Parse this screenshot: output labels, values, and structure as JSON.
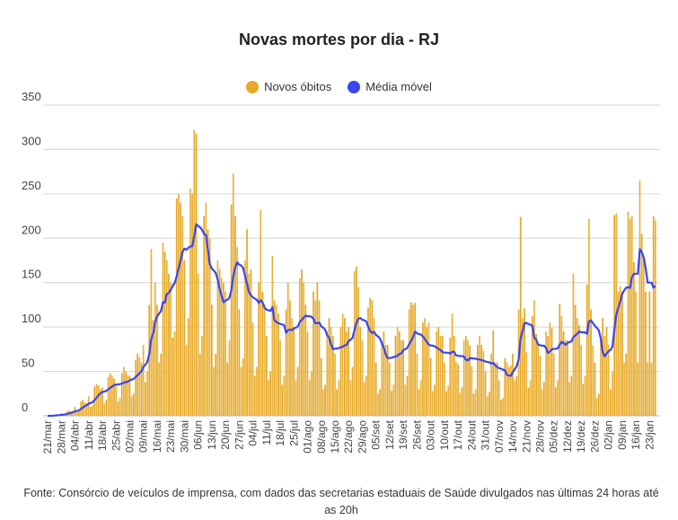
{
  "chart_data": {
    "type": "bar",
    "title": "Novas mortes por dia - RJ",
    "legend": [
      {
        "label": "Novos óbitos",
        "color": "#e8a82a"
      },
      {
        "label": "Média móvel",
        "color": "#3a46f0"
      }
    ],
    "legend_position": "top-center",
    "start_date": "21/mar",
    "ma_window": 7,
    "ylim": [
      0,
      350
    ],
    "yticks": [
      0,
      50,
      100,
      150,
      200,
      250,
      300,
      350
    ],
    "xtick_labels": [
      "21/mar",
      "28/mar",
      "04/abr",
      "11/abr",
      "18/abr",
      "25/abr",
      "02/mai",
      "09/mai",
      "16/mai",
      "23/mai",
      "30/mai",
      "06/jun",
      "13/jun",
      "20/jun",
      "27/jun",
      "04/jul",
      "11/jul",
      "18/jul",
      "25/jul",
      "01/ago",
      "08/ago",
      "15/ago",
      "22/ago",
      "29/ago",
      "05/set",
      "12/set",
      "19/set",
      "26/set",
      "03/out",
      "10/out",
      "17/out",
      "24/out",
      "31/out",
      "07/nov",
      "14/nov",
      "21/nov",
      "28/nov",
      "05/dez",
      "12/dez",
      "19/dez",
      "26/dez",
      "02/jan",
      "09/jan",
      "16/jan",
      "23/jan"
    ],
    "xtick_every_days": 7,
    "grid": true,
    "values": [
      0,
      0,
      0,
      1,
      1,
      2,
      1,
      3,
      1,
      2,
      5,
      6,
      5,
      6,
      10,
      5,
      6,
      16,
      18,
      15,
      14,
      22,
      10,
      12,
      33,
      36,
      34,
      30,
      32,
      14,
      18,
      44,
      48,
      45,
      42,
      35,
      16,
      20,
      48,
      55,
      50,
      46,
      45,
      22,
      25,
      63,
      70,
      66,
      60,
      80,
      38,
      50,
      125,
      188,
      108,
      150,
      125,
      60,
      70,
      195,
      185,
      175,
      160,
      150,
      88,
      95,
      245,
      250,
      240,
      225,
      175,
      80,
      110,
      256,
      250,
      322,
      318,
      160,
      70,
      90,
      225,
      240,
      210,
      200,
      125,
      55,
      70,
      175,
      165,
      155,
      150,
      140,
      60,
      85,
      238,
      273,
      225,
      190,
      120,
      55,
      65,
      175,
      210,
      160,
      165,
      105,
      45,
      55,
      150,
      232,
      140,
      125,
      90,
      40,
      50,
      180,
      130,
      125,
      115,
      85,
      35,
      45,
      120,
      150,
      130,
      110,
      100,
      40,
      55,
      155,
      165,
      150,
      125,
      95,
      40,
      50,
      140,
      130,
      150,
      130,
      65,
      30,
      35,
      95,
      110,
      100,
      90,
      70,
      30,
      40,
      100,
      115,
      110,
      95,
      100,
      40,
      55,
      163,
      168,
      145,
      100,
      85,
      38,
      45,
      122,
      133,
      130,
      110,
      60,
      25,
      30,
      85,
      95,
      80,
      80,
      60,
      28,
      35,
      90,
      100,
      95,
      85,
      85,
      35,
      45,
      120,
      128,
      125,
      127,
      70,
      30,
      40,
      105,
      110,
      100,
      105,
      65,
      28,
      35,
      95,
      100,
      90,
      90,
      60,
      28,
      34,
      88,
      115,
      90,
      61,
      58,
      26,
      32,
      85,
      90,
      85,
      79,
      56,
      25,
      30,
      80,
      90,
      80,
      73,
      50,
      22,
      27,
      70,
      96,
      60,
      60,
      40,
      18,
      20,
      65,
      60,
      55,
      57,
      70,
      40,
      45,
      120,
      224,
      110,
      121,
      72,
      32,
      40,
      112,
      130,
      92,
      82,
      68,
      30,
      38,
      95,
      90,
      105,
      99,
      70,
      32,
      40,
      126,
      112,
      95,
      85,
      85,
      38,
      45,
      160,
      125,
      110,
      102,
      80,
      36,
      45,
      148,
      222,
      120,
      79,
      60,
      20,
      25,
      85,
      110,
      90,
      100,
      80,
      30,
      50,
      226,
      228,
      140,
      146,
      140,
      60,
      70,
      230,
      222,
      225,
      173,
      140,
      60,
      265,
      205,
      180,
      140,
      60,
      140,
      60,
      225,
      220
    ]
  },
  "footer": "Fonte: Consórcio de veículos de imprensa, com dados das secretarias estaduais de Saúde divulgados nas últimas 24 horas até as 20h"
}
